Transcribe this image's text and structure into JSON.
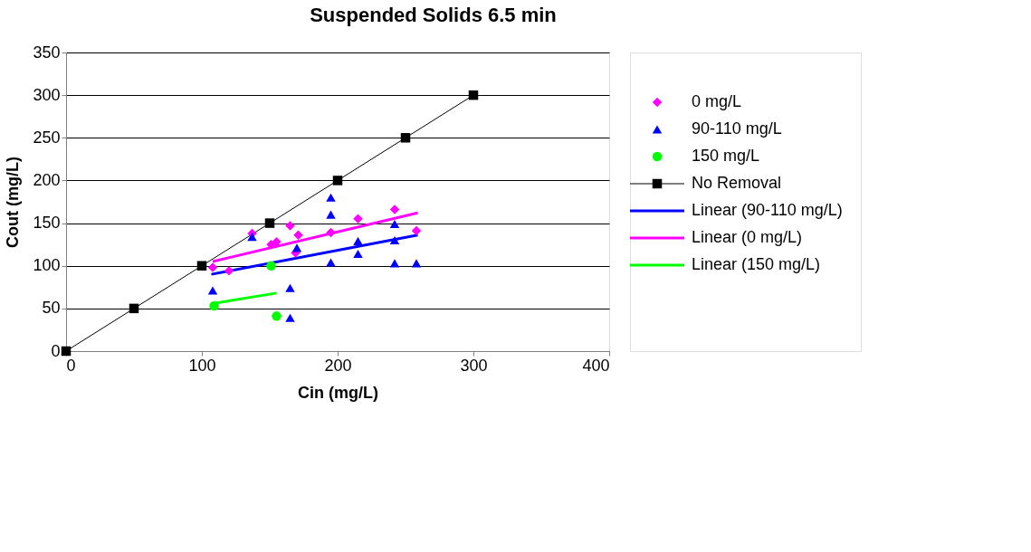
{
  "chart_data": {
    "type": "scatter",
    "title": "Suspended Solids 6.5 min",
    "xlabel": "Cin (mg/L)",
    "ylabel": "Cout (mg/L)",
    "xlim": [
      0,
      400
    ],
    "xticks": [
      0,
      100,
      200,
      300,
      400
    ],
    "ylim": [
      0,
      350
    ],
    "yticks": [
      0,
      50,
      100,
      150,
      200,
      250,
      300,
      350
    ],
    "grid": "y",
    "legend": "right",
    "series": [
      {
        "name": "0 mg/L",
        "marker": "diamond",
        "color": "#ff00ff",
        "x": [
          108,
          120,
          137,
          151,
          155,
          165,
          171,
          169,
          195,
          215,
          242,
          258
        ],
        "values": [
          98,
          94,
          138,
          125,
          128,
          147,
          136,
          115,
          139,
          155,
          166,
          141
        ]
      },
      {
        "name": "90-110 mg/L",
        "marker": "triangle",
        "color": "#0000ff",
        "x": [
          108,
          137,
          165,
          165,
          170,
          195,
          195,
          195,
          215,
          215,
          242,
          242,
          242,
          258
        ],
        "values": [
          71,
          134,
          74,
          39,
          121,
          180,
          160,
          104,
          129,
          114,
          149,
          130,
          103,
          103
        ]
      },
      {
        "name": "150 mg/L",
        "marker": "circle",
        "color": "#00ff00",
        "x": [
          109,
          151,
          155
        ],
        "values": [
          53,
          100,
          41
        ]
      },
      {
        "name": "No Removal",
        "type": "line",
        "marker": "square",
        "color": "#000000",
        "x": [
          0,
          50,
          100,
          150,
          200,
          250,
          300
        ],
        "values": [
          0,
          50,
          100,
          150,
          200,
          250,
          300
        ]
      },
      {
        "name": "Linear (90-110 mg/L)",
        "type": "line",
        "marker": "none",
        "color": "#0000ff",
        "x": [
          107,
          259
        ],
        "values": [
          90,
          136
        ]
      },
      {
        "name": "Linear (0 mg/L)",
        "type": "line",
        "marker": "none",
        "color": "#ff00ff",
        "x": [
          108,
          259
        ],
        "values": [
          105,
          162
        ]
      },
      {
        "name": "Linear (150 mg/L)",
        "type": "line",
        "marker": "none",
        "color": "#00ff00",
        "x": [
          109,
          155
        ],
        "values": [
          56,
          68
        ]
      }
    ]
  }
}
